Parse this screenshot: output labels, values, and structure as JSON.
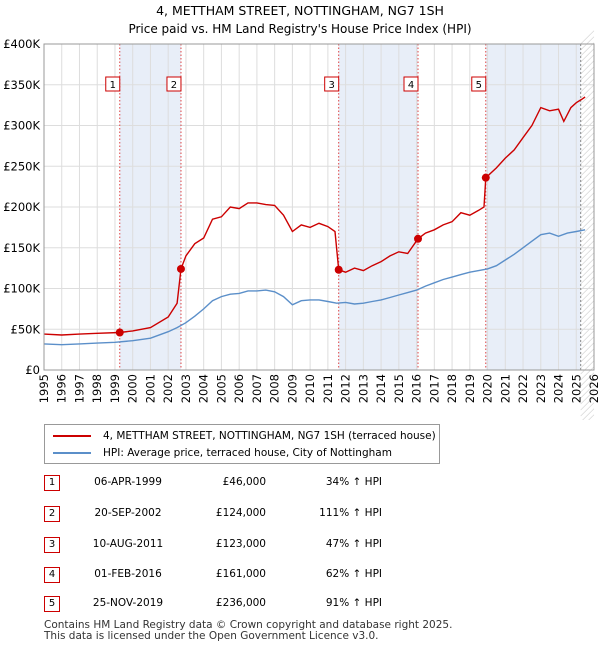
{
  "chart_data": {
    "type": "line",
    "title": "4, METTHAM STREET, NOTTINGHAM, NG7 1SH",
    "subtitle": "Price paid vs. HM Land Registry's House Price Index (HPI)",
    "xlim": [
      1995,
      2026
    ],
    "ylim": [
      0,
      400000
    ],
    "x_ticks": [
      "1995",
      "1996",
      "1997",
      "1998",
      "1999",
      "2000",
      "2001",
      "2002",
      "2003",
      "2004",
      "2005",
      "2006",
      "2007",
      "2008",
      "2009",
      "2010",
      "2011",
      "2012",
      "2013",
      "2014",
      "2015",
      "2016",
      "2017",
      "2018",
      "2019",
      "2020",
      "2021",
      "2022",
      "2023",
      "2024",
      "2025",
      "2026"
    ],
    "y_ticks": [
      {
        "value": 0,
        "label": "£0"
      },
      {
        "value": 50000,
        "label": "£50K"
      },
      {
        "value": 100000,
        "label": "£100K"
      },
      {
        "value": 150000,
        "label": "£150K"
      },
      {
        "value": 200000,
        "label": "£200K"
      },
      {
        "value": 250000,
        "label": "£250K"
      },
      {
        "value": 300000,
        "label": "£300K"
      },
      {
        "value": 350000,
        "label": "£350K"
      },
      {
        "value": 400000,
        "label": "£400K"
      }
    ],
    "shaded_periods": [
      [
        1999.27,
        2002.72
      ],
      [
        2011.61,
        2016.08
      ],
      [
        2019.9,
        2025.25
      ]
    ],
    "series": [
      {
        "name": "4, METTHAM STREET, NOTTINGHAM, NG7 1SH (terraced house)",
        "color": "#cc0000",
        "points": [
          [
            1995.0,
            44000
          ],
          [
            1996.0,
            43000
          ],
          [
            1997.0,
            44000
          ],
          [
            1998.0,
            45000
          ],
          [
            1999.27,
            46000
          ],
          [
            2000.0,
            48000
          ],
          [
            2001.0,
            52000
          ],
          [
            2002.0,
            65000
          ],
          [
            2002.5,
            82000
          ],
          [
            2002.72,
            124000
          ],
          [
            2003.0,
            140000
          ],
          [
            2003.5,
            155000
          ],
          [
            2004.0,
            162000
          ],
          [
            2004.5,
            185000
          ],
          [
            2005.0,
            188000
          ],
          [
            2005.5,
            200000
          ],
          [
            2006.0,
            198000
          ],
          [
            2006.5,
            205000
          ],
          [
            2007.0,
            205000
          ],
          [
            2007.5,
            203000
          ],
          [
            2008.0,
            202000
          ],
          [
            2008.5,
            190000
          ],
          [
            2009.0,
            170000
          ],
          [
            2009.5,
            178000
          ],
          [
            2010.0,
            175000
          ],
          [
            2010.5,
            180000
          ],
          [
            2011.0,
            176000
          ],
          [
            2011.4,
            170000
          ],
          [
            2011.61,
            123000
          ],
          [
            2012.0,
            120000
          ],
          [
            2012.5,
            125000
          ],
          [
            2013.0,
            122000
          ],
          [
            2013.5,
            128000
          ],
          [
            2014.0,
            133000
          ],
          [
            2014.5,
            140000
          ],
          [
            2015.0,
            145000
          ],
          [
            2015.5,
            143000
          ],
          [
            2016.08,
            161000
          ],
          [
            2016.5,
            168000
          ],
          [
            2017.0,
            172000
          ],
          [
            2017.5,
            178000
          ],
          [
            2018.0,
            182000
          ],
          [
            2018.5,
            193000
          ],
          [
            2019.0,
            190000
          ],
          [
            2019.5,
            196000
          ],
          [
            2019.8,
            200000
          ],
          [
            2019.9,
            236000
          ],
          [
            2020.5,
            248000
          ],
          [
            2021.0,
            260000
          ],
          [
            2021.5,
            270000
          ],
          [
            2022.0,
            285000
          ],
          [
            2022.5,
            300000
          ],
          [
            2023.0,
            322000
          ],
          [
            2023.5,
            318000
          ],
          [
            2024.0,
            320000
          ],
          [
            2024.3,
            305000
          ],
          [
            2024.7,
            322000
          ],
          [
            2025.0,
            328000
          ],
          [
            2025.3,
            332000
          ],
          [
            2025.5,
            335000
          ]
        ]
      },
      {
        "name": "HPI: Average price, terraced house, City of Nottingham",
        "color": "#5b8fc9",
        "points": [
          [
            1995.0,
            32000
          ],
          [
            1996.0,
            31000
          ],
          [
            1997.0,
            32000
          ],
          [
            1998.0,
            33000
          ],
          [
            1999.0,
            34000
          ],
          [
            2000.0,
            36000
          ],
          [
            2001.0,
            39000
          ],
          [
            2002.0,
            47000
          ],
          [
            2002.5,
            52000
          ],
          [
            2003.0,
            58000
          ],
          [
            2003.5,
            66000
          ],
          [
            2004.0,
            75000
          ],
          [
            2004.5,
            85000
          ],
          [
            2005.0,
            90000
          ],
          [
            2005.5,
            93000
          ],
          [
            2006.0,
            94000
          ],
          [
            2006.5,
            97000
          ],
          [
            2007.0,
            97000
          ],
          [
            2007.5,
            98000
          ],
          [
            2008.0,
            96000
          ],
          [
            2008.5,
            90000
          ],
          [
            2009.0,
            80000
          ],
          [
            2009.5,
            85000
          ],
          [
            2010.0,
            86000
          ],
          [
            2010.5,
            86000
          ],
          [
            2011.0,
            84000
          ],
          [
            2011.5,
            82000
          ],
          [
            2012.0,
            83000
          ],
          [
            2012.5,
            81000
          ],
          [
            2013.0,
            82000
          ],
          [
            2013.5,
            84000
          ],
          [
            2014.0,
            86000
          ],
          [
            2014.5,
            89000
          ],
          [
            2015.0,
            92000
          ],
          [
            2015.5,
            95000
          ],
          [
            2016.0,
            98000
          ],
          [
            2016.5,
            103000
          ],
          [
            2017.0,
            107000
          ],
          [
            2017.5,
            111000
          ],
          [
            2018.0,
            114000
          ],
          [
            2018.5,
            117000
          ],
          [
            2019.0,
            120000
          ],
          [
            2019.5,
            122000
          ],
          [
            2020.0,
            124000
          ],
          [
            2020.5,
            128000
          ],
          [
            2021.0,
            135000
          ],
          [
            2021.5,
            142000
          ],
          [
            2022.0,
            150000
          ],
          [
            2022.5,
            158000
          ],
          [
            2023.0,
            166000
          ],
          [
            2023.5,
            168000
          ],
          [
            2024.0,
            164000
          ],
          [
            2024.5,
            168000
          ],
          [
            2025.0,
            170000
          ],
          [
            2025.5,
            172000
          ]
        ]
      }
    ],
    "markers": [
      {
        "label": "1",
        "x": 1999.27,
        "y": 46000
      },
      {
        "label": "2",
        "x": 2002.72,
        "y": 124000
      },
      {
        "label": "3",
        "x": 2011.61,
        "y": 123000
      },
      {
        "label": "4",
        "x": 2016.08,
        "y": 161000
      },
      {
        "label": "5",
        "x": 2019.9,
        "y": 236000
      }
    ]
  },
  "legend": {
    "property": "4, METTHAM STREET, NOTTINGHAM, NG7 1SH (terraced house)",
    "hpi": "HPI: Average price, terraced house, City of Nottingham"
  },
  "transactions": [
    {
      "num": "1",
      "date": "06-APR-1999",
      "price": "£46,000",
      "hpi": "34% ↑ HPI"
    },
    {
      "num": "2",
      "date": "20-SEP-2002",
      "price": "£124,000",
      "hpi": "111% ↑ HPI"
    },
    {
      "num": "3",
      "date": "10-AUG-2011",
      "price": "£123,000",
      "hpi": "47% ↑ HPI"
    },
    {
      "num": "4",
      "date": "01-FEB-2016",
      "price": "£161,000",
      "hpi": "62% ↑ HPI"
    },
    {
      "num": "5",
      "date": "25-NOV-2019",
      "price": "£236,000",
      "hpi": "91% ↑ HPI"
    }
  ],
  "footer": {
    "line1": "Contains HM Land Registry data © Crown copyright and database right 2025.",
    "line2": "This data is licensed under the Open Government Licence v3.0."
  }
}
